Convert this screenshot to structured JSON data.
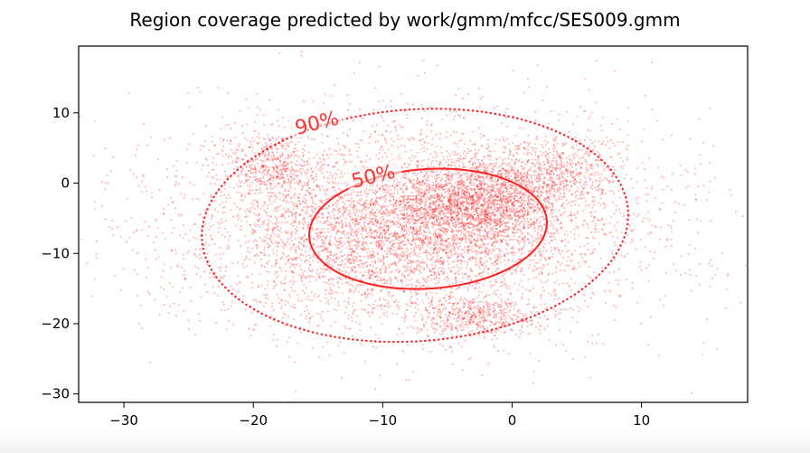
{
  "chart_data": {
    "type": "scatter",
    "title": "Region coverage predicted by work/gmm/mfcc/SES009.gmm",
    "xlabel": "",
    "ylabel": "",
    "xlim": [
      -33.5,
      18.2
    ],
    "ylim": [
      -31.2,
      19.5
    ],
    "x_ticks": [
      -30,
      -20,
      -10,
      0,
      10
    ],
    "x_tick_labels": [
      "−30",
      "−20",
      "−10",
      "0",
      "10"
    ],
    "y_ticks": [
      10,
      0,
      -10,
      -20,
      -30
    ],
    "y_tick_labels": [
      "10",
      "0",
      "−10",
      "−20",
      "−30"
    ],
    "grid": false,
    "legend": "none",
    "point_color": "#ff0000",
    "approx_points": 9000,
    "clusters": [
      {
        "cx": -2.5,
        "cy": -2.5,
        "sx": 3.2,
        "sy": 3.2,
        "share": 0.22
      },
      {
        "cx": -9,
        "cy": -8,
        "sx": 6.5,
        "sy": 5.5,
        "share": 0.3
      },
      {
        "cx": -18.5,
        "cy": 2.5,
        "sx": 1.6,
        "sy": 2.6,
        "share": 0.05
      },
      {
        "cx": -3,
        "cy": -19,
        "sx": 2.4,
        "sy": 1.4,
        "share": 0.05
      },
      {
        "cx": 3.8,
        "cy": 1.5,
        "sx": 2.2,
        "sy": 2.5,
        "share": 0.05
      },
      {
        "cx": -7,
        "cy": -5,
        "sx": 11,
        "sy": 8,
        "share": 0.33
      }
    ],
    "contours": [
      {
        "label": "90%",
        "style": "dotted",
        "color": "#ff2222",
        "center": [
          -7.5,
          -6
        ],
        "rx": 16.5,
        "ry": 16.5
      },
      {
        "label": "50%",
        "style": "solid",
        "color": "#ff2222",
        "center": [
          -6.5,
          -6.5
        ],
        "rx": 9.2,
        "ry": 8.5
      }
    ]
  }
}
